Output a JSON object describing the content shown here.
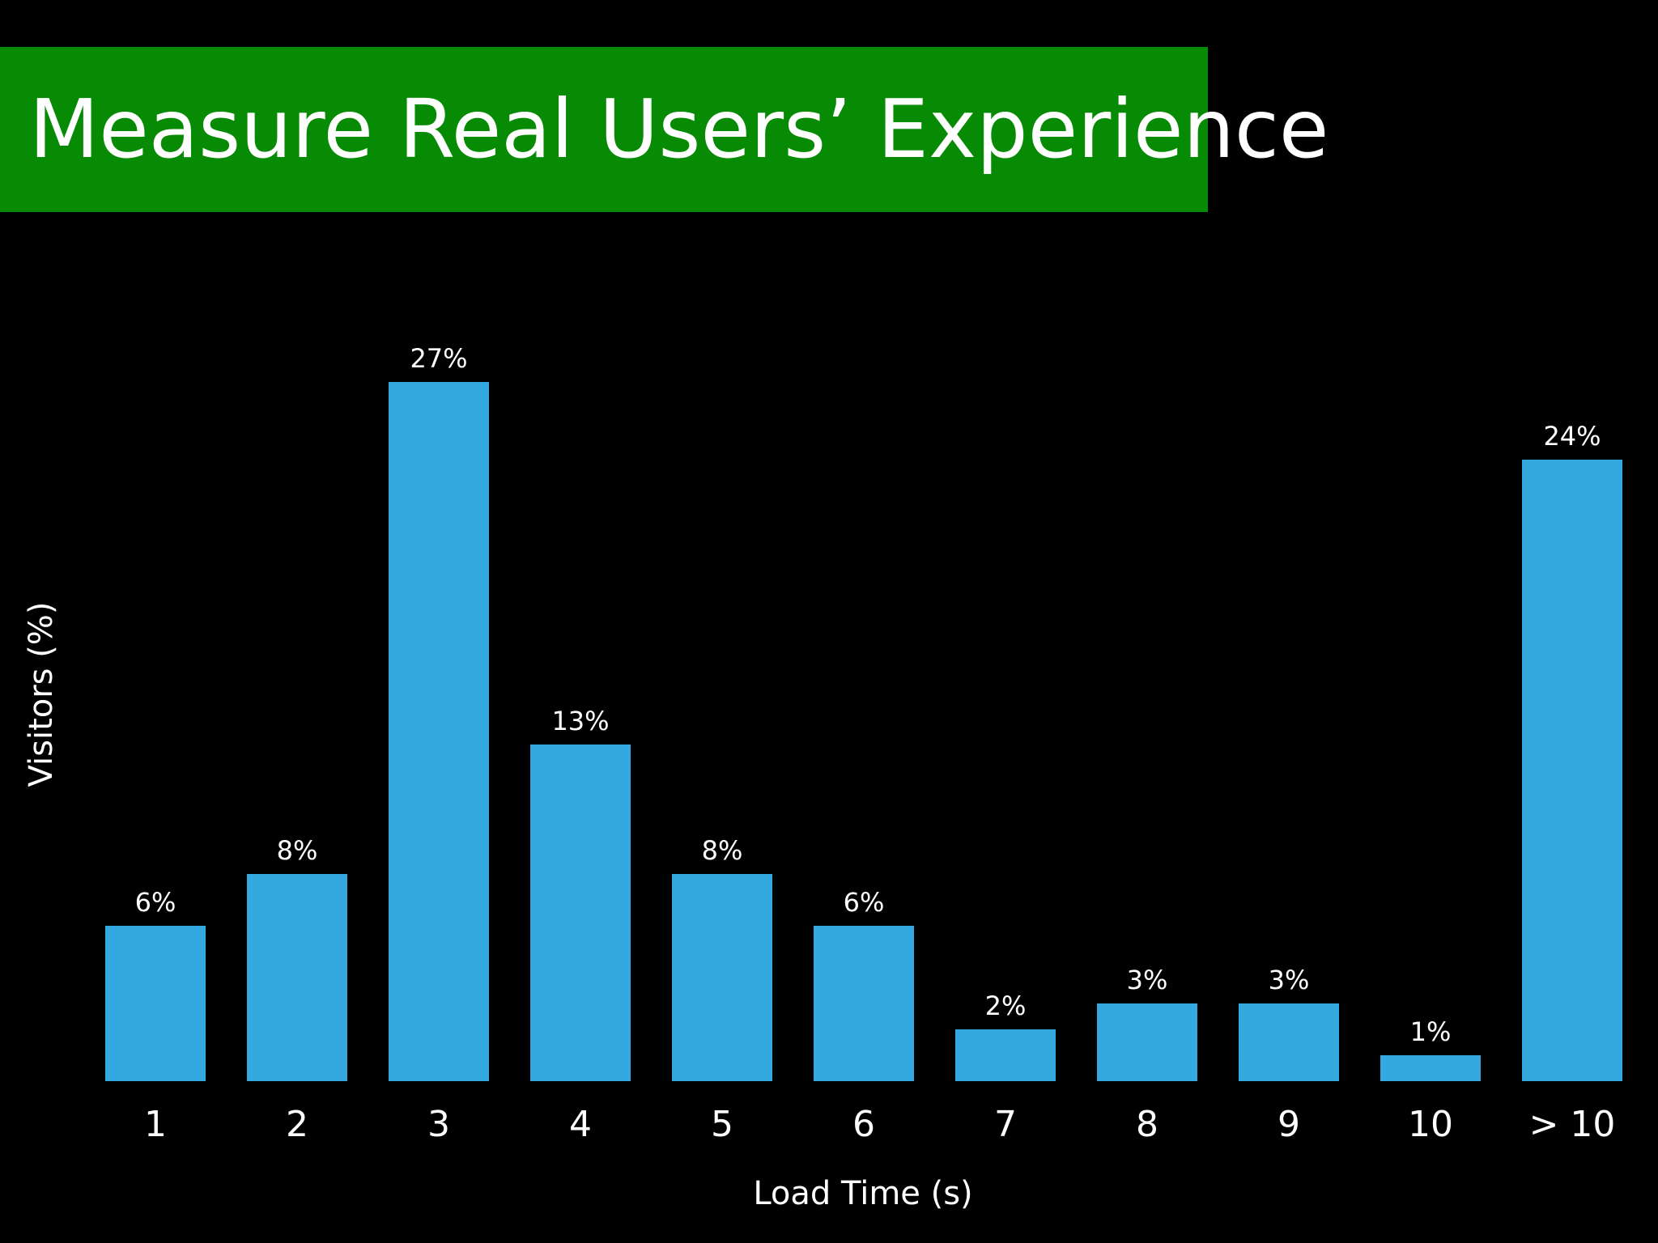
{
  "slide": {
    "title": "Measure Real Users’ Experience",
    "title_bg_color": "#078a04"
  },
  "chart_data": {
    "type": "bar",
    "categories": [
      "1",
      "2",
      "3",
      "4",
      "5",
      "6",
      "7",
      "8",
      "9",
      "10",
      "> 10"
    ],
    "values": [
      6,
      8,
      27,
      13,
      8,
      6,
      2,
      3,
      3,
      1,
      24
    ],
    "data_labels": [
      "6%",
      "8%",
      "27%",
      "13%",
      "8%",
      "6%",
      "2%",
      "3%",
      "3%",
      "1%",
      "24%"
    ],
    "title": "",
    "xlabel": "Load Time (s)",
    "ylabel": "Visitors (%)",
    "ylim": [
      0,
      27
    ],
    "grid": false,
    "bar_color": "#33a9e0"
  }
}
